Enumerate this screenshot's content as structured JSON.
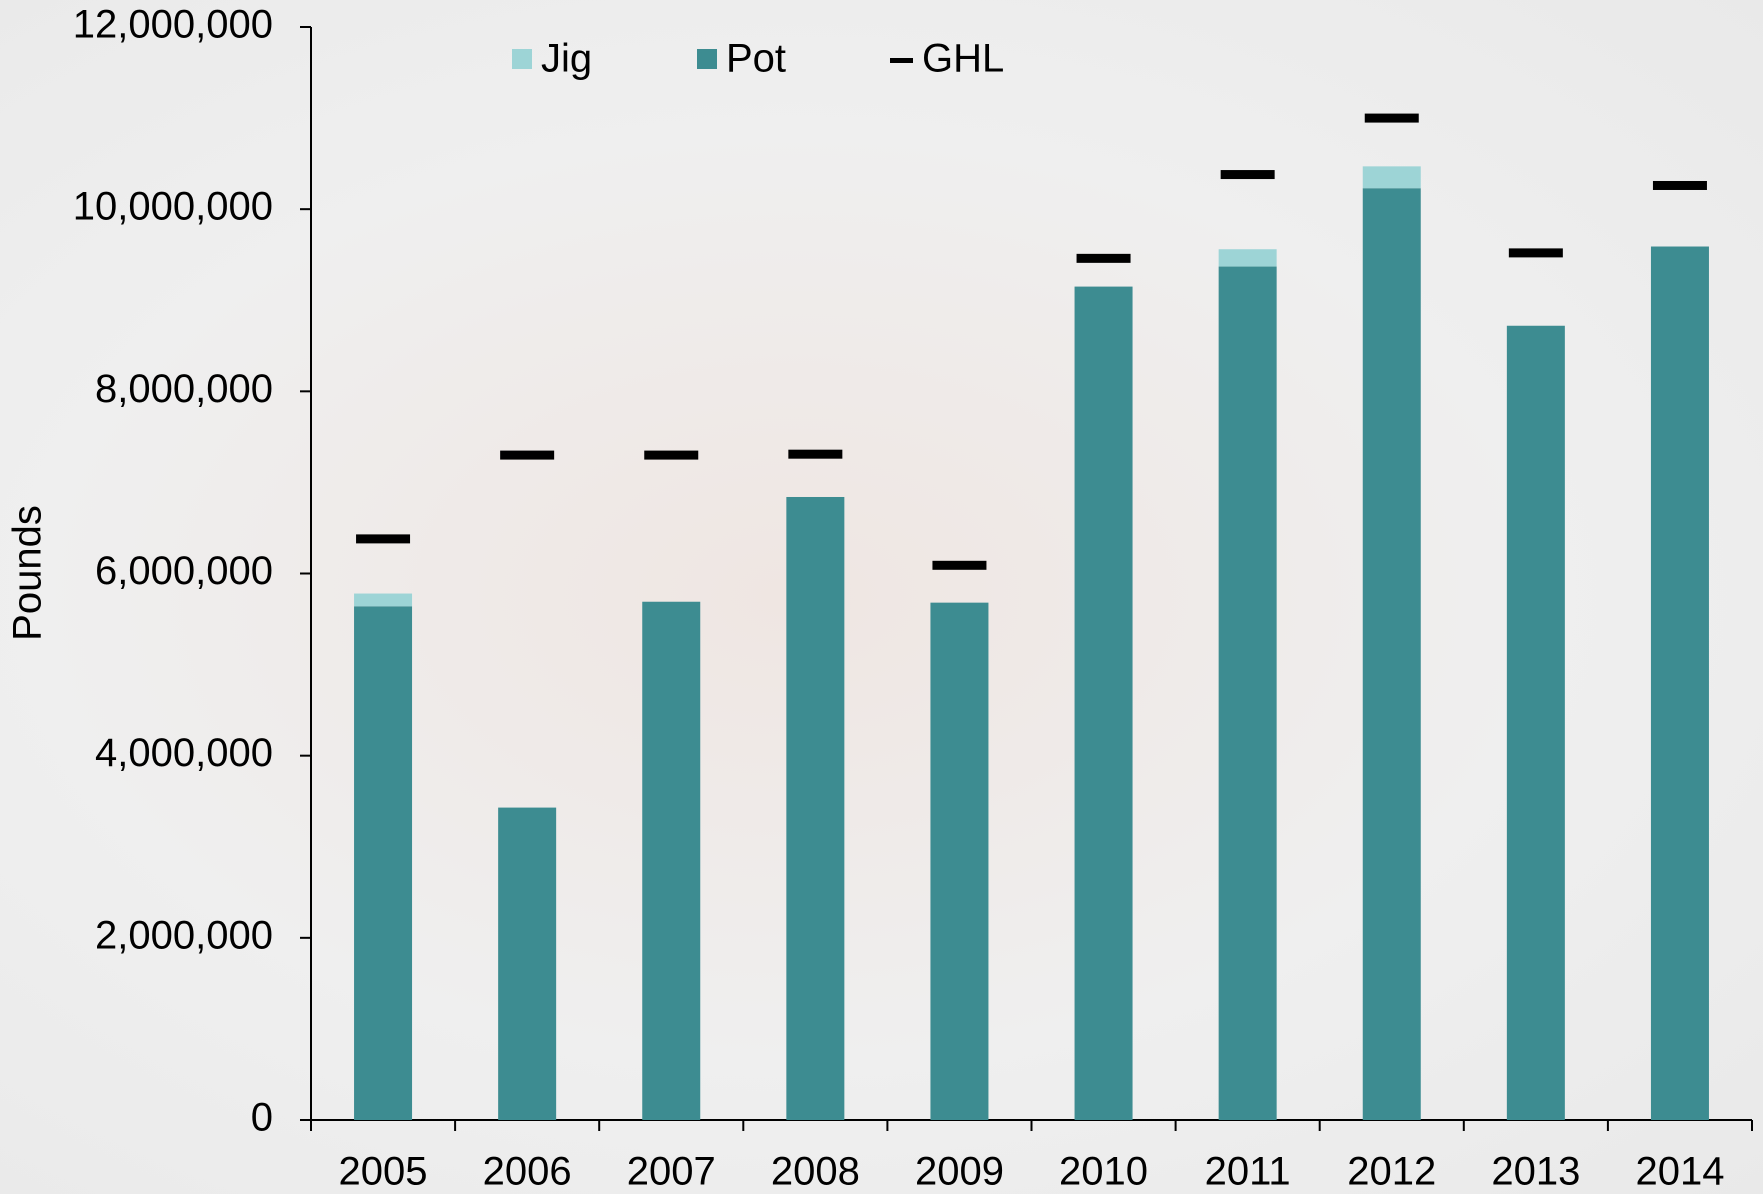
{
  "chart_data": {
    "type": "bar",
    "y_label": "Pounds",
    "categories": [
      "2005",
      "2006",
      "2007",
      "2008",
      "2009",
      "2010",
      "2011",
      "2012",
      "2013",
      "2014"
    ],
    "series": [
      {
        "name": "Jig",
        "type": "bar",
        "color": "#9dd4d6",
        "values": [
          140000,
          0,
          0,
          0,
          0,
          0,
          190000,
          240000,
          0,
          0
        ]
      },
      {
        "name": "Pot",
        "type": "bar",
        "color": "#3d8c91",
        "values": [
          5640000,
          3430000,
          5690000,
          6840000,
          5680000,
          9150000,
          9370000,
          10230000,
          8720000,
          9590000
        ]
      },
      {
        "name": "GHL",
        "type": "marker",
        "color": "#000000",
        "values": [
          6380000,
          7300000,
          7300000,
          7310000,
          6090000,
          9460000,
          10380000,
          11000000,
          9520000,
          10260000
        ]
      }
    ],
    "stacked": true,
    "ylim": [
      0,
      12000000
    ],
    "yticks": [
      0,
      {
        "value": 2000000,
        "label": "2,000,000"
      },
      {
        "value": 4000000,
        "label": "4,000,000"
      },
      {
        "value": 6000000,
        "label": "6,000,000"
      },
      {
        "value": 8000000,
        "label": "8,000,000"
      },
      {
        "value": 10000000,
        "label": "10,000,000"
      },
      {
        "value": 12000000,
        "label": "12,000,000"
      }
    ],
    "grid": false
  }
}
